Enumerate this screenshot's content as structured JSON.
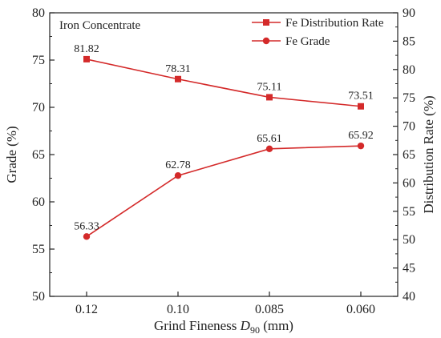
{
  "chart_data": {
    "type": "line",
    "title": "",
    "annotation": "Iron Concentrate",
    "xlabel": {
      "prefix": "Grind Fineness ",
      "italic": "D",
      "subscript": "90",
      "suffix": " (mm)"
    },
    "ylabel_left": "Grade (%)",
    "ylabel_right": "Distribution Rate (%)",
    "categories": [
      "0.12",
      "0.10",
      "0.085",
      "0.060"
    ],
    "ylim_left": [
      50,
      80
    ],
    "yticks_left": [
      50,
      55,
      60,
      65,
      70,
      75,
      80
    ],
    "ylim_right": [
      40,
      90
    ],
    "yticks_right": [
      40,
      45,
      50,
      55,
      60,
      65,
      70,
      75,
      80,
      85,
      90
    ],
    "grid": false,
    "legend_position": "top-right",
    "series": [
      {
        "name": "Fe Distribution Rate",
        "axis": "right",
        "marker": "square",
        "color": "#d42a2a",
        "values": [
          81.82,
          78.31,
          75.11,
          73.51
        ],
        "labels": [
          "81.82",
          "78.31",
          "75.11",
          "73.51"
        ]
      },
      {
        "name": "Fe Grade",
        "axis": "left",
        "marker": "circle",
        "color": "#d42a2a",
        "values": [
          56.33,
          62.78,
          65.61,
          65.92
        ],
        "labels": [
          "56.33",
          "62.78",
          "65.61",
          "65.92"
        ]
      }
    ]
  }
}
